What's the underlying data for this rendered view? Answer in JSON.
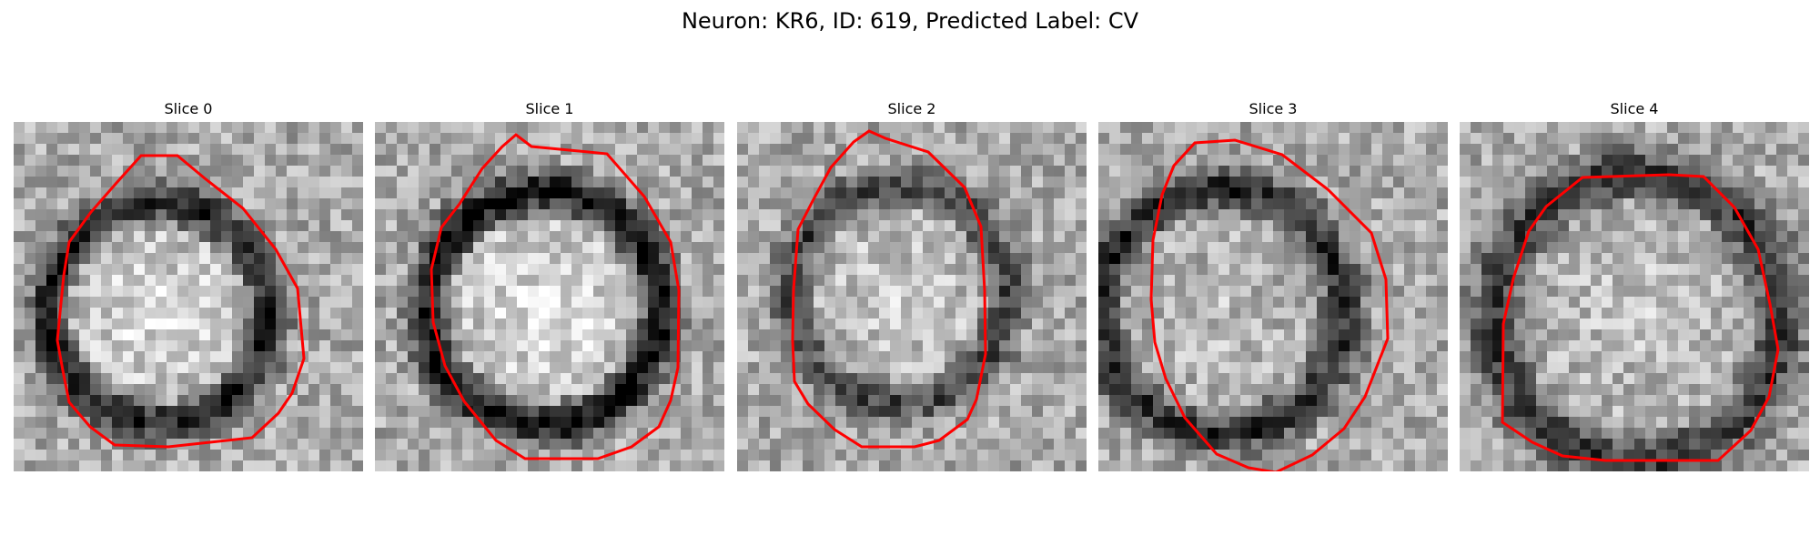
{
  "figure": {
    "title": "Neuron: KR6, ID: 619, Predicted Label: CV"
  },
  "panels": [
    {
      "title": "Slice 0"
    },
    {
      "title": "Slice 1"
    },
    {
      "title": "Slice 2"
    },
    {
      "title": "Slice 3"
    },
    {
      "title": "Slice 4"
    }
  ],
  "style": {
    "contour_color": "#ff0000",
    "colormap": "gray"
  }
}
